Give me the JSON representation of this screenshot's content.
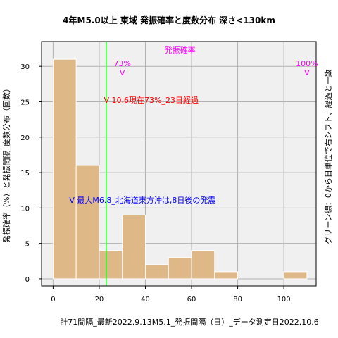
{
  "chart_data": {
    "type": "bar",
    "title": "4年M5.0以上 東域 発振確率と度数分布 深さ<130km",
    "xlabel": "計71間隔_最新2022.9.13M5.1_発振間隔（日）_データ測定日2022.10.6",
    "ylabel": "発振確率（%）と発振間隔_度数分布（回数）",
    "right_label": "グリーン線：0から日単位で右シフト、経過と一致",
    "x_ticks": [
      0,
      20,
      40,
      60,
      80,
      100
    ],
    "y_ticks": [
      0,
      5,
      10,
      15,
      20,
      25,
      30
    ],
    "xlim": [
      -5,
      114
    ],
    "ylim": [
      -1,
      33.5
    ],
    "bin_width": 10,
    "bins": [
      {
        "x": 0,
        "count": 31
      },
      {
        "x": 10,
        "count": 16
      },
      {
        "x": 20,
        "count": 4
      },
      {
        "x": 30,
        "count": 9
      },
      {
        "x": 40,
        "count": 2
      },
      {
        "x": 50,
        "count": 3
      },
      {
        "x": 60,
        "count": 4
      },
      {
        "x": 70,
        "count": 1
      },
      {
        "x": 100,
        "count": 1
      }
    ],
    "green_line_x": 23,
    "grid": true,
    "colors": {
      "bar": "#deb887",
      "green": "#00ff00",
      "magenta": "#ff00ff",
      "red": "#ff0000",
      "blue": "#0000ff",
      "plot_bg": "#f0f0f0",
      "grid": "#b0b0b0"
    },
    "annotations": {
      "prob_legend": "発振確率",
      "pct73": "73%",
      "pct100": "100%",
      "marker": "V",
      "red_note": "V 10.6現在73%_23日経過",
      "blue_note": "V 最大M6.8_北海道東方沖は,8日後の発震"
    }
  }
}
